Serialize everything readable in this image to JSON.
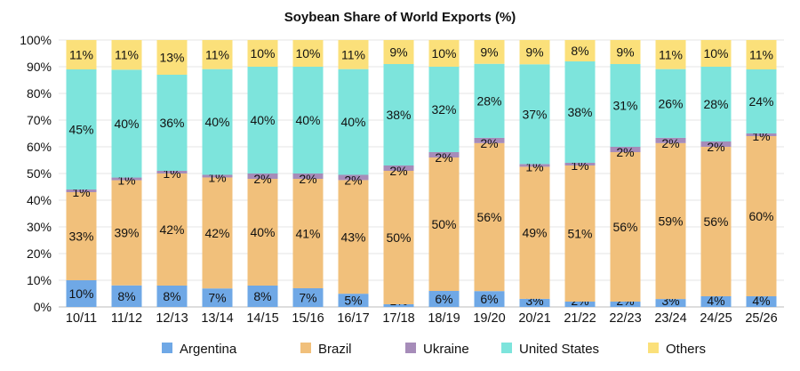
{
  "chart_data": {
    "type": "bar",
    "stacked": true,
    "title": "Soybean Share of World Exports (%)",
    "xlabel": "",
    "ylabel": "",
    "ylim": [
      0,
      100
    ],
    "yticks": [
      "0%",
      "10%",
      "20%",
      "30%",
      "40%",
      "50%",
      "60%",
      "70%",
      "80%",
      "90%",
      "100%"
    ],
    "grid": true,
    "legend_position": "bottom",
    "categories": [
      "10/11",
      "11/12",
      "12/13",
      "13/14",
      "14/15",
      "15/16",
      "16/17",
      "17/18",
      "18/19",
      "19/20",
      "20/21",
      "21/22",
      "22/23",
      "23/24",
      "24/25",
      "25/26"
    ],
    "series": [
      {
        "name": "Argentina",
        "color": "#6fa8e6",
        "values": [
          10,
          8,
          8,
          7,
          8,
          7,
          5,
          1,
          6,
          6,
          3,
          2,
          2,
          3,
          4,
          4
        ]
      },
      {
        "name": "Brazil",
        "color": "#f1c07b",
        "values": [
          33,
          39,
          42,
          42,
          40,
          41,
          43,
          50,
          50,
          56,
          49,
          51,
          56,
          59,
          56,
          60
        ]
      },
      {
        "name": "Ukraine",
        "color": "#a68cb9",
        "values": [
          1,
          1,
          1,
          1,
          2,
          2,
          2,
          2,
          2,
          2,
          1,
          1,
          2,
          2,
          2,
          1
        ]
      },
      {
        "name": "United States",
        "color": "#7de4dc",
        "values": [
          45,
          40,
          36,
          40,
          40,
          40,
          40,
          38,
          32,
          28,
          37,
          38,
          31,
          26,
          28,
          24
        ]
      },
      {
        "name": "Others",
        "color": "#fbe07a",
        "values": [
          11,
          11,
          13,
          11,
          10,
          10,
          11,
          9,
          10,
          9,
          9,
          8,
          9,
          11,
          10,
          11
        ]
      }
    ]
  }
}
